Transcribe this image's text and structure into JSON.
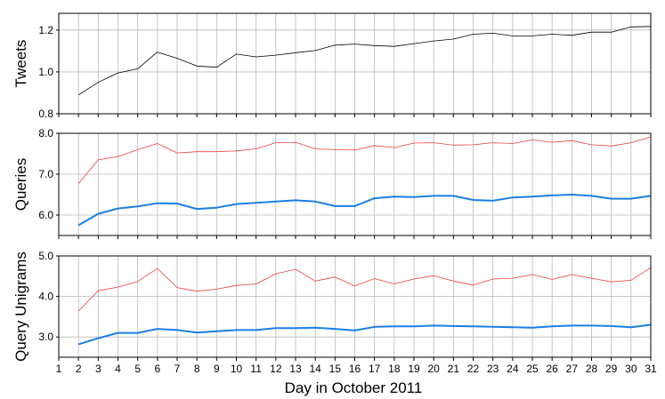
{
  "chart_data": {
    "type": "line",
    "xlabel": "Day in October 2011",
    "x": [
      2,
      3,
      4,
      5,
      6,
      7,
      8,
      9,
      10,
      11,
      12,
      13,
      14,
      15,
      16,
      17,
      18,
      19,
      20,
      21,
      22,
      23,
      24,
      25,
      26,
      27,
      28,
      29,
      30,
      31
    ],
    "xticks": [
      "1",
      "2",
      "3",
      "4",
      "5",
      "6",
      "7",
      "8",
      "9",
      "10",
      "11",
      "12",
      "13",
      "14",
      "15",
      "16",
      "17",
      "18",
      "19",
      "20",
      "21",
      "22",
      "23",
      "24",
      "25",
      "26",
      "27",
      "28",
      "29",
      "30",
      "31"
    ],
    "xlim": [
      1,
      31
    ],
    "grid": true,
    "panels": [
      {
        "ylabel": "Tweets",
        "ylim": [
          0.8,
          1.28
        ],
        "yticks": [
          "0.8",
          "1.0",
          "1.2"
        ],
        "ytick_values": [
          0.8,
          1.0,
          1.2
        ],
        "series": [
          {
            "color": "#000000",
            "width": 0.8,
            "values": [
              0.89,
              0.95,
              0.995,
              1.015,
              1.095,
              1.065,
              1.028,
              1.022,
              1.085,
              1.072,
              1.08,
              1.092,
              1.102,
              1.128,
              1.133,
              1.126,
              1.122,
              1.135,
              1.148,
              1.157,
              1.18,
              1.185,
              1.172,
              1.172,
              1.18,
              1.175,
              1.19,
              1.19,
              1.215,
              1.217
            ]
          }
        ]
      },
      {
        "ylabel": "Queries",
        "ylim": [
          5.5,
          8.0
        ],
        "yticks": [
          "6.0",
          "7.0",
          "8.0"
        ],
        "ytick_values": [
          6.0,
          7.0,
          8.0
        ],
        "series": [
          {
            "color": "#ef3e3e",
            "width": 0.8,
            "values": [
              6.77,
              7.35,
              7.43,
              7.6,
              7.75,
              7.52,
              7.55,
              7.55,
              7.57,
              7.62,
              7.77,
              7.78,
              7.62,
              7.6,
              7.59,
              7.7,
              7.65,
              7.76,
              7.77,
              7.71,
              7.72,
              7.77,
              7.75,
              7.84,
              7.78,
              7.82,
              7.72,
              7.69,
              7.77,
              7.91
            ]
          },
          {
            "color": "#1a7fe6",
            "width": 2,
            "values": [
              5.75,
              6.03,
              6.16,
              6.21,
              6.29,
              6.28,
              6.15,
              6.18,
              6.27,
              6.3,
              6.33,
              6.36,
              6.33,
              6.22,
              6.22,
              6.41,
              6.45,
              6.44,
              6.47,
              6.47,
              6.37,
              6.35,
              6.43,
              6.45,
              6.48,
              6.5,
              6.47,
              6.4,
              6.4,
              6.47
            ]
          }
        ]
      },
      {
        "ylabel": "Query Unigrams",
        "ylim": [
          2.5,
          5.0
        ],
        "yticks": [
          "3.0",
          "4.0",
          "5.0"
        ],
        "ytick_values": [
          3.0,
          4.0,
          5.0
        ],
        "series": [
          {
            "color": "#ef3e3e",
            "width": 0.8,
            "values": [
              3.64,
              4.14,
              4.23,
              4.37,
              4.69,
              4.22,
              4.13,
              4.18,
              4.27,
              4.31,
              4.56,
              4.67,
              4.38,
              4.48,
              4.26,
              4.44,
              4.31,
              4.43,
              4.51,
              4.38,
              4.28,
              4.43,
              4.45,
              4.54,
              4.42,
              4.54,
              4.45,
              4.36,
              4.4,
              4.71
            ]
          },
          {
            "color": "#1a7fe6",
            "width": 2,
            "values": [
              2.82,
              2.97,
              3.1,
              3.1,
              3.2,
              3.17,
              3.11,
              3.14,
              3.17,
              3.17,
              3.22,
              3.22,
              3.23,
              3.2,
              3.16,
              3.25,
              3.26,
              3.26,
              3.28,
              3.27,
              3.26,
              3.25,
              3.24,
              3.23,
              3.26,
              3.28,
              3.28,
              3.27,
              3.24,
              3.3
            ]
          }
        ]
      }
    ]
  }
}
